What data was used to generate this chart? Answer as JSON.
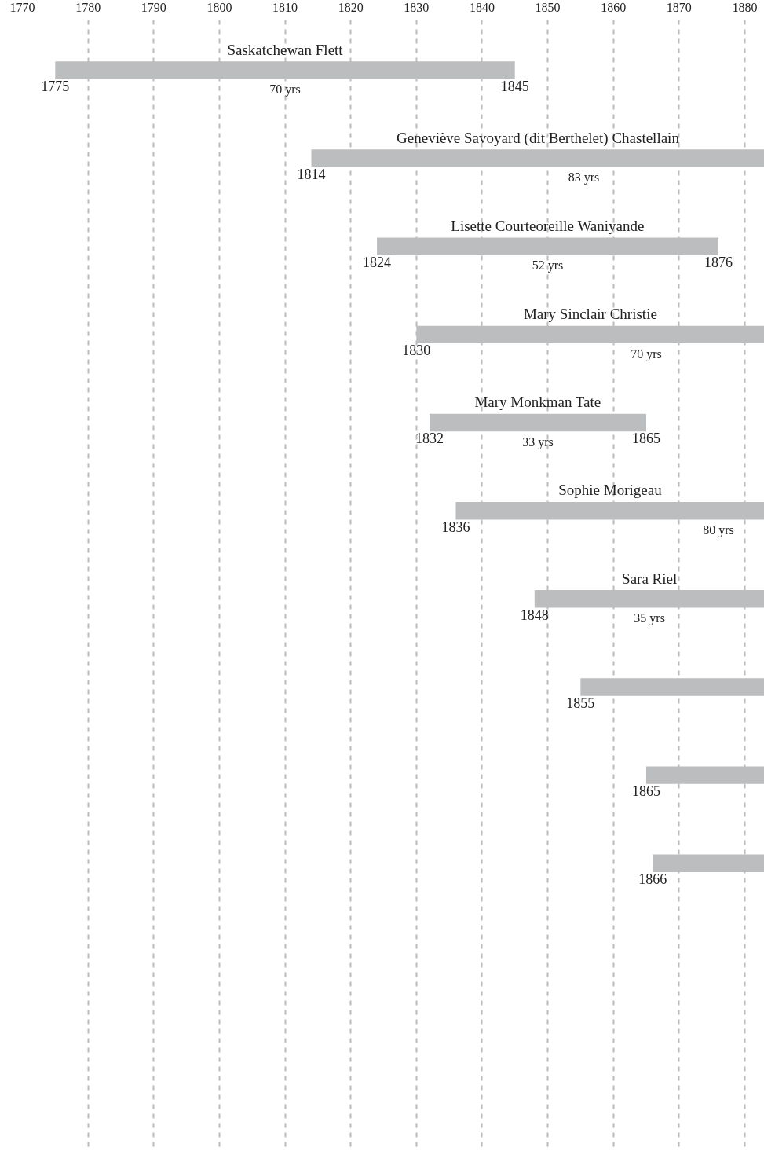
{
  "chart_data": {
    "type": "bar",
    "orientation": "horizontal",
    "categories": [
      "Saskatchewan Flett",
      "Geneviève Savoyard (dit Berthelet) Chastellain",
      "Lisette Courteoreille Waniyande",
      "Mary Sinclair Christie",
      "Mary Monkman Tate",
      "Sophie Morigeau",
      "Sara Riel",
      null,
      null,
      null
    ],
    "base": [
      1775,
      1814,
      1824,
      1830,
      1832,
      1836,
      1848,
      1855,
      1865,
      1866
    ],
    "values": [
      70,
      83,
      52,
      70,
      33,
      80,
      35,
      28,
      18,
      17
    ],
    "value_labels": [
      "70 yrs",
      "83 yrs",
      "52 yrs",
      "70 yrs",
      "33 yrs",
      "80 yrs",
      "35 yrs",
      null,
      null,
      null
    ],
    "color": "#bcbdbf",
    "xlim": [
      1770,
      1883
    ],
    "annotations": [
      "1775",
      "1845",
      "1814",
      "1824",
      "1876",
      "1830",
      "1832",
      "1865",
      "1836",
      "1848",
      "1855",
      "1865",
      "1866"
    ],
    "xticks": [
      1770,
      1780,
      1790,
      1800,
      1810,
      1820,
      1830,
      1840,
      1850,
      1860,
      1870,
      1880
    ],
    "grid": "x"
  }
}
